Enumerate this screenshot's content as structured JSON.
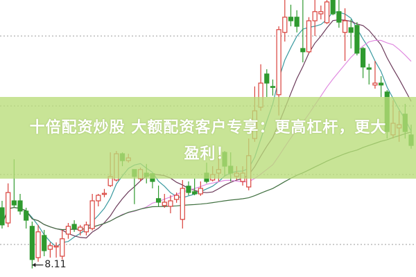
{
  "chart_data": {
    "type": "candlestick",
    "title": "",
    "xlabel": "",
    "ylabel": "",
    "ylim": [
      7.8,
      17.8
    ],
    "grid": "horizontal dotted",
    "up_color": "#d9403a",
    "down_color": "#2f9a2f",
    "ma_colors": [
      "#3a9aa0",
      "#6b3a5a",
      "#e08ae0",
      "#3f6f3f"
    ],
    "ma_periods": [
      5,
      10,
      20,
      60
    ],
    "candles": [
      [
        10.3,
        10.55,
        9.55,
        9.68
      ],
      [
        9.75,
        11.18,
        9.6,
        10.85
      ],
      [
        10.55,
        12.05,
        10.3,
        10.4
      ],
      [
        10.55,
        10.8,
        10.05,
        10.18
      ],
      [
        10.18,
        10.3,
        9.55,
        9.85
      ],
      [
        9.63,
        9.8,
        8.11,
        8.43
      ],
      [
        8.5,
        9.68,
        8.35,
        9.43
      ],
      [
        9.3,
        9.5,
        8.55,
        8.75
      ],
      [
        8.8,
        9.05,
        8.5,
        8.93
      ],
      [
        8.9,
        9.05,
        8.5,
        8.92
      ],
      [
        8.55,
        9.5,
        8.43,
        9.18
      ],
      [
        9.35,
        9.75,
        9.18,
        9.63
      ],
      [
        9.7,
        9.85,
        9.43,
        9.55
      ],
      [
        9.48,
        9.68,
        9.3,
        9.6
      ],
      [
        9.43,
        9.8,
        9.3,
        9.68
      ],
      [
        9.55,
        10.8,
        9.48,
        10.55
      ],
      [
        10.55,
        10.8,
        10.35,
        10.75
      ],
      [
        10.8,
        10.98,
        10.68,
        10.82
      ],
      [
        11.1,
        12.3,
        11.05,
        11.43
      ],
      [
        11.3,
        12.35,
        11.25,
        12.25
      ],
      [
        12.25,
        12.3,
        11.8,
        12.0
      ],
      [
        12.0,
        12.25,
        11.93,
        12.1
      ],
      [
        11.68,
        11.68,
        10.43,
        11.43
      ],
      [
        11.35,
        11.75,
        11.25,
        11.68
      ],
      [
        11.55,
        11.88,
        11.18,
        11.43
      ],
      [
        11.53,
        11.55,
        11.0,
        11.25
      ],
      [
        10.63,
        11.1,
        10.35,
        10.5
      ],
      [
        10.38,
        10.8,
        10.3,
        10.5
      ],
      [
        10.35,
        10.75,
        10.1,
        10.55
      ],
      [
        10.6,
        10.85,
        10.48,
        10.75
      ],
      [
        9.88,
        11.3,
        9.55,
        11.0
      ],
      [
        11.08,
        11.25,
        10.75,
        10.85
      ],
      [
        10.88,
        11.35,
        10.75,
        10.8
      ],
      [
        10.8,
        11.25,
        10.73,
        11.0
      ],
      [
        11.55,
        11.93,
        11.18,
        11.25
      ],
      [
        11.3,
        11.8,
        11.25,
        11.5
      ],
      [
        11.55,
        12.18,
        11.25,
        11.68
      ],
      [
        12.3,
        12.35,
        11.43,
        11.8
      ],
      [
        11.8,
        12.3,
        11.25,
        11.55
      ],
      [
        11.43,
        11.8,
        11.3,
        11.55
      ],
      [
        11.25,
        11.8,
        11.1,
        11.55
      ],
      [
        11.05,
        12.8,
        10.93,
        12.18
      ],
      [
        12.8,
        14.68,
        12.68,
        13.8
      ],
      [
        13.93,
        15.48,
        13.8,
        14.8
      ],
      [
        15.13,
        15.3,
        14.3,
        14.8
      ],
      [
        14.68,
        14.93,
        14.35,
        14.65
      ],
      [
        14.38,
        16.85,
        13.63,
        16.73
      ],
      [
        16.63,
        17.8,
        16.3,
        17.18
      ],
      [
        17.18,
        17.63,
        16.85,
        17.05
      ],
      [
        17.18,
        17.43,
        16.63,
        16.85
      ],
      [
        16.05,
        17.8,
        15.55,
        15.93
      ],
      [
        15.93,
        17.18,
        15.88,
        17.05
      ],
      [
        17.05,
        17.8,
        16.5,
        17.38
      ],
      [
        17.3,
        17.6,
        17.1,
        17.38
      ],
      [
        16.98,
        17.8,
        16.93,
        17.73
      ],
      [
        17.8,
        17.8,
        17.25,
        17.3
      ],
      [
        17.38,
        17.8,
        16.8,
        17.0
      ],
      [
        16.63,
        17.5,
        15.6,
        17.05
      ],
      [
        16.8,
        17.1,
        16.05,
        16.63
      ],
      [
        16.88,
        17.0,
        15.8,
        15.88
      ],
      [
        16.05,
        16.1,
        14.98,
        15.38
      ],
      [
        15.35,
        15.5,
        14.75,
        15.3
      ],
      [
        14.73,
        15.6,
        14.6,
        14.8
      ],
      [
        14.8,
        15.05,
        14.3,
        14.73
      ],
      [
        14.48,
        14.55,
        12.8,
        13.05
      ],
      [
        12.93,
        14.18,
        12.8,
        13.35
      ],
      [
        13.18,
        13.8,
        12.68,
        13.3
      ],
      [
        13.68,
        14.05,
        12.8,
        13.05
      ],
      [
        12.93,
        13.3,
        12.43,
        12.55
      ]
    ],
    "annotations": [
      {
        "text": "8.11",
        "marks": "low"
      }
    ]
  },
  "banner": {
    "line1": "十倍配资炒股 大额配资客户专享：更高杠杆，更大",
    "line2": "盈利！",
    "color": "#b9dc78"
  }
}
